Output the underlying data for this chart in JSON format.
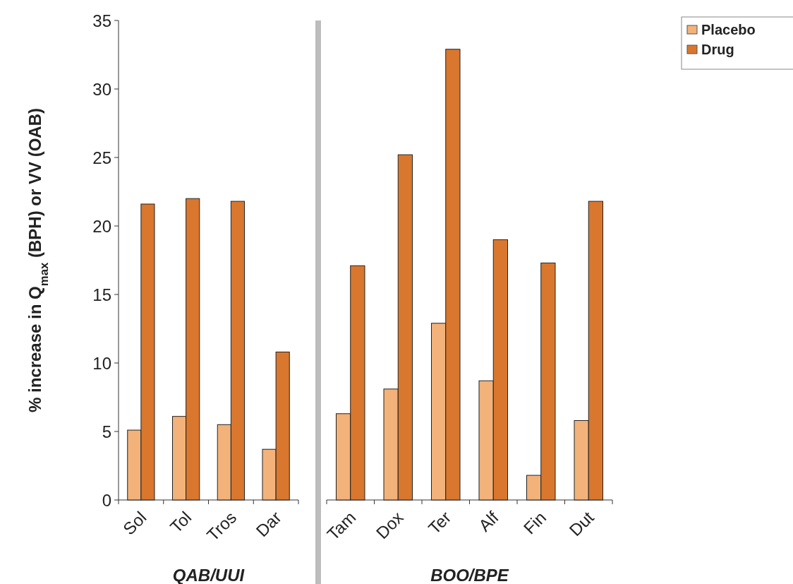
{
  "chart_data": [
    {
      "type": "bar",
      "xlabel": "QAB/UUI",
      "ylabel": "% increase in Q$_{max}$ (BPH) or VV (OAB)",
      "categories": [
        "Sol",
        "Tol",
        "Tros",
        "Dar"
      ],
      "series": [
        {
          "color": "#f2b27a",
          "values": [
            5.1,
            6.1,
            5.5,
            3.7
          ]
        },
        {
          "color": "#d9772e",
          "values": [
            21.6,
            22.0,
            21.8,
            10.8
          ]
        }
      ],
      "ylim": [
        0,
        35
      ],
      "yticks": [
        0,
        5,
        10,
        15,
        20,
        25,
        30,
        35
      ],
      "tick_labels": "xy"
    },
    {
      "type": "bar",
      "xlabel": "BOO/BPE",
      "categories": [
        "Tam",
        "Dox",
        "Ter",
        "Alf",
        "Fin",
        "Dut"
      ],
      "series": [
        {
          "name": "Placebo",
          "color": "#f2b27a",
          "values": [
            6.3,
            8.1,
            12.9,
            8.7,
            1.8,
            5.8
          ]
        },
        {
          "name": "Drug",
          "color": "#d9772e",
          "values": [
            17.1,
            25.2,
            32.9,
            19.0,
            17.3,
            21.8
          ]
        }
      ],
      "ylim": [
        0,
        35
      ],
      "yticks": [
        0,
        5,
        10,
        15,
        20,
        25,
        30,
        35
      ],
      "tick_labels": "x",
      "legend": "top right"
    }
  ]
}
